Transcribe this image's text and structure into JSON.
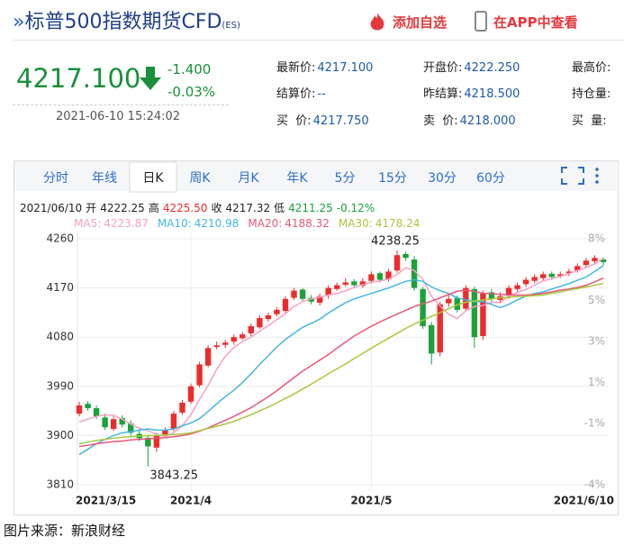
{
  "header": {
    "title": "标普500指数期货CFD",
    "code": "(ES)",
    "add_watchlist": "添加自选",
    "view_in_app": "在APP中查看"
  },
  "quote": {
    "price": "4217.100",
    "change": "-1.400",
    "change_pct": "-0.03%",
    "time": "2021-06-10 15:24:02",
    "fields": [
      {
        "label": "最新价:",
        "value": "4217.100"
      },
      {
        "label": "开盘价:",
        "value": "4222.250"
      },
      {
        "label": "最高价:"
      },
      {
        "label": "结算价:",
        "value": "--"
      },
      {
        "label": "昨结算:",
        "value": "4218.500"
      },
      {
        "label": "持仓量:"
      },
      {
        "label": "买  价:",
        "value": "4217.750"
      },
      {
        "label": "卖  价:",
        "value": "4218.000"
      },
      {
        "label": "买  量:"
      }
    ]
  },
  "tabs": [
    "分时",
    "年线",
    "日K",
    "周K",
    "月K",
    "年K",
    "5分",
    "15分",
    "30分",
    "60分"
  ],
  "active_tab": 2,
  "chart_data": {
    "type": "candlestick",
    "info": [
      "2021/06/10",
      "开",
      "4222.25",
      "高",
      "4225.50",
      "收",
      "4217.32",
      "低",
      "4211.25",
      "-0.12%"
    ],
    "categories": [
      "2021/3/15",
      null,
      null,
      null,
      null,
      null,
      null,
      null,
      null,
      null,
      null,
      null,
      null,
      "2021/4",
      null,
      null,
      null,
      null,
      null,
      null,
      null,
      null,
      null,
      null,
      null,
      null,
      null,
      null,
      null,
      null,
      null,
      null,
      null,
      null,
      "2021/5",
      null,
      null,
      null,
      null,
      null,
      null,
      null,
      null,
      null,
      null,
      null,
      null,
      null,
      null,
      null,
      null,
      null,
      null,
      null,
      null,
      null,
      null,
      null,
      null,
      null,
      null,
      "2021/6/10"
    ],
    "open": [
      3940,
      3958,
      3950,
      3933,
      3912,
      3932,
      3922,
      3903,
      3896,
      3878,
      3902,
      3912,
      3942,
      3962,
      3992,
      4028,
      4062,
      4066,
      4072,
      4078,
      4087,
      4098,
      4113,
      4122,
      4128,
      4152,
      4167,
      4152,
      4143,
      4157,
      4168,
      4176,
      4182,
      4174,
      4183,
      4197,
      4186,
      4202,
      4232,
      4222,
      4168,
      4102,
      4052,
      4142,
      4152,
      4132,
      4168,
      4082,
      4162,
      4148,
      4157,
      4168,
      4177,
      4183,
      4188,
      4196,
      4192,
      4197,
      4202,
      4212,
      4219,
      4222.25
    ],
    "high": [
      3962,
      3963,
      3955,
      3940,
      3935,
      3937,
      3928,
      3910,
      3900,
      3905,
      3915,
      3945,
      3965,
      3995,
      4035,
      4065,
      4072,
      4075,
      4085,
      4090,
      4105,
      4120,
      4125,
      4135,
      4155,
      4170,
      4170,
      4157,
      4160,
      4175,
      4180,
      4188,
      4186,
      4188,
      4200,
      4200,
      4205,
      4238.25,
      4236,
      4228,
      4172,
      4108,
      4145,
      4158,
      4156,
      4175,
      4172,
      4165,
      4168,
      4162,
      4175,
      4180,
      4190,
      4195,
      4200,
      4200,
      4200,
      4205,
      4215,
      4225,
      4230,
      4225.5
    ],
    "low": [
      3935,
      3945,
      3930,
      3910,
      3908,
      3915,
      3900,
      3890,
      3843.25,
      3870,
      3898,
      3908,
      3938,
      3958,
      3988,
      4025,
      4058,
      4060,
      4066,
      4075,
      4082,
      4095,
      4108,
      4118,
      4125,
      4148,
      4145,
      4140,
      4138,
      4150,
      4165,
      4172,
      4170,
      4170,
      4178,
      4180,
      4182,
      4198,
      4220,
      4165,
      4095,
      4030,
      4045,
      4135,
      4125,
      4128,
      4060,
      4075,
      4145,
      4142,
      4150,
      4162,
      4172,
      4178,
      4182,
      4185,
      4188,
      4192,
      4198,
      4208,
      4215,
      4211.25
    ],
    "close": [
      3955,
      3950,
      3935,
      3915,
      3930,
      3920,
      3905,
      3895,
      3880,
      3900,
      3910,
      3940,
      3960,
      3990,
      4030,
      4060,
      4065,
      4070,
      4080,
      4085,
      4100,
      4115,
      4120,
      4130,
      4150,
      4165,
      4150,
      4145,
      4155,
      4170,
      4175,
      4180,
      4175,
      4182,
      4195,
      4185,
      4200,
      4230,
      4225,
      4170,
      4100,
      4050,
      4140,
      4150,
      4130,
      4170,
      4080,
      4160,
      4150,
      4155,
      4170,
      4175,
      4185,
      4190,
      4195,
      4190,
      4195,
      4200,
      4210,
      4220,
      4225,
      4217.32
    ],
    "up_color": "#ee2b2b",
    "down_color": "#19a33a",
    "series": [
      {
        "name": "MA5:",
        "color": "#f7a1c4",
        "values": [
          3925,
          3930,
          3935,
          3938,
          3937,
          3930,
          3921,
          3913,
          3909,
          3902,
          3898,
          3905,
          3918,
          3938,
          3966,
          3992,
          4021,
          4045,
          4061,
          4072,
          4080,
          4091,
          4101,
          4112,
          4123,
          4136,
          4145,
          4150,
          4153,
          4157,
          4160,
          4165,
          4171,
          4176,
          4180,
          4183,
          4186,
          4195,
          4207,
          4202,
          4186,
          4155,
          4137,
          4122,
          4114,
          4128,
          4136,
          4138,
          4144,
          4143,
          4155,
          4162,
          4167,
          4175,
          4183,
          4187,
          4191,
          4196,
          4202,
          4207,
          4214,
          4223.87
        ]
      },
      {
        "name": "MA10:",
        "color": "#45b7e2",
        "values": [
          3865,
          3875,
          3885,
          3893,
          3900,
          3905,
          3907,
          3910,
          3912,
          3910,
          3910,
          3912,
          3918,
          3923,
          3931,
          3944,
          3958,
          3971,
          3983,
          3997,
          4013,
          4030,
          4046,
          4062,
          4076,
          4087,
          4098,
          4105,
          4113,
          4124,
          4134,
          4143,
          4150,
          4155,
          4160,
          4165,
          4170,
          4176,
          4182,
          4185,
          4182,
          4172,
          4165,
          4160,
          4152,
          4148,
          4145,
          4145,
          4140,
          4134,
          4140,
          4148,
          4155,
          4160,
          4163,
          4168,
          4173,
          4178,
          4184,
          4190,
          4200,
          4210.98
        ]
      },
      {
        "name": "MA20:",
        "color": "#e9577b",
        "values": [
          3880,
          3882,
          3885,
          3887,
          3889,
          3890,
          3892,
          3893,
          3894,
          3895,
          3896,
          3898,
          3900,
          3903,
          3908,
          3914,
          3921,
          3928,
          3935,
          3943,
          3951,
          3961,
          3971,
          3982,
          3994,
          4006,
          4018,
          4028,
          4038,
          4048,
          4060,
          4071,
          4082,
          4091,
          4100,
          4108,
          4115,
          4122,
          4129,
          4136,
          4141,
          4146,
          4152,
          4158,
          4164,
          4166,
          4164,
          4160,
          4160,
          4158,
          4157,
          4157,
          4157,
          4158,
          4160,
          4163,
          4166,
          4168,
          4171,
          4175,
          4181,
          4188.32
        ]
      },
      {
        "name": "MA30:",
        "color": "#a9c83c",
        "values": [
          3885,
          3888,
          3891,
          3893,
          3895,
          3897,
          3898,
          3899,
          3900,
          3900,
          3901,
          3902,
          3903,
          3905,
          3909,
          3913,
          3917,
          3921,
          3926,
          3932,
          3938,
          3945,
          3952,
          3960,
          3968,
          3976,
          3985,
          3994,
          4003,
          4013,
          4022,
          4031,
          4041,
          4050,
          4060,
          4069,
          4078,
          4087,
          4096,
          4104,
          4111,
          4118,
          4125,
          4132,
          4139,
          4144,
          4146,
          4148,
          4150,
          4152,
          4153,
          4154,
          4155,
          4156,
          4157,
          4160,
          4163,
          4166,
          4169,
          4172,
          4175,
          4178.24
        ]
      }
    ],
    "ylim": [
      3810,
      4260
    ],
    "yticks": [
      4260,
      4170,
      4080,
      3990,
      3900,
      3810
    ],
    "y2lim": [
      -4,
      8
    ],
    "y2ticks": [
      {
        "value": 8,
        "label": "8%"
      },
      {
        "value": 5,
        "label": "5%"
      },
      {
        "value": 3,
        "label": "3%"
      },
      {
        "value": 1,
        "label": "1%"
      },
      {
        "value": -1,
        "label": "-1%"
      },
      {
        "value": -4,
        "label": "-4%"
      }
    ],
    "grid": true
  },
  "source": "图片来源：新浪财经"
}
